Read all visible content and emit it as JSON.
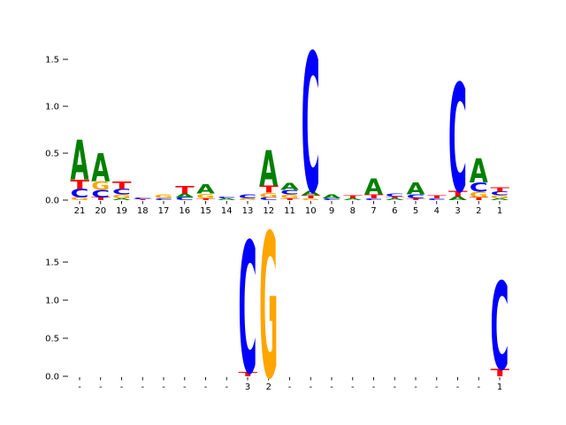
{
  "figure": {
    "background": "#ffffff",
    "axis_color": "#000000"
  },
  "chart_data": [
    {
      "type": "sequence_logo",
      "panel": "top",
      "title": "",
      "xlabel": "",
      "ylabel": "",
      "yticks": [
        0.0,
        0.5,
        1.0,
        1.5
      ],
      "ylim": [
        0,
        1.65
      ],
      "grid": false,
      "colors": {
        "A": "#008000",
        "C": "#0000ff",
        "G": "#ffa500",
        "T": "#ff0000"
      },
      "positions": [
        {
          "label": "21",
          "stack": [
            [
              "G",
              0.03
            ],
            [
              "C",
              0.09
            ],
            [
              "T",
              0.1
            ],
            [
              "A",
              0.42
            ]
          ]
        },
        {
          "label": "20",
          "stack": [
            [
              "T",
              0.03
            ],
            [
              "C",
              0.08
            ],
            [
              "G",
              0.09
            ],
            [
              "A",
              0.3
            ]
          ]
        },
        {
          "label": "19",
          "stack": [
            [
              "A",
              0.02
            ],
            [
              "G",
              0.04
            ],
            [
              "C",
              0.06
            ],
            [
              "T",
              0.08
            ]
          ]
        },
        {
          "label": "18",
          "stack": [
            [
              "T",
              0.01
            ],
            [
              "C",
              0.02
            ]
          ]
        },
        {
          "label": "17",
          "stack": [
            [
              "C",
              0.02
            ],
            [
              "G",
              0.04
            ]
          ]
        },
        {
          "label": "16",
          "stack": [
            [
              "C",
              0.03
            ],
            [
              "A",
              0.04
            ],
            [
              "T",
              0.08
            ]
          ]
        },
        {
          "label": "15",
          "stack": [
            [
              "T",
              0.02
            ],
            [
              "G",
              0.05
            ],
            [
              "A",
              0.1
            ]
          ]
        },
        {
          "label": "14",
          "stack": [
            [
              "A",
              0.02
            ],
            [
              "C",
              0.02
            ]
          ]
        },
        {
          "label": "13",
          "stack": [
            [
              "G",
              0.02
            ],
            [
              "C",
              0.04
            ]
          ]
        },
        {
          "label": "12",
          "stack": [
            [
              "C",
              0.03
            ],
            [
              "G",
              0.05
            ],
            [
              "T",
              0.07
            ],
            [
              "A",
              0.38
            ]
          ]
        },
        {
          "label": "11",
          "stack": [
            [
              "T",
              0.02
            ],
            [
              "G",
              0.04
            ],
            [
              "C",
              0.05
            ],
            [
              "A",
              0.07
            ]
          ]
        },
        {
          "label": "10",
          "stack": [
            [
              "G",
              0.02
            ],
            [
              "T",
              0.03
            ],
            [
              "A",
              0.05
            ],
            [
              "C",
              1.48
            ]
          ]
        },
        {
          "label": "9",
          "stack": [
            [
              "C",
              0.02
            ],
            [
              "A",
              0.04
            ]
          ]
        },
        {
          "label": "8",
          "stack": [
            [
              "A",
              0.02
            ],
            [
              "T",
              0.03
            ]
          ]
        },
        {
          "label": "7",
          "stack": [
            [
              "C",
              0.02
            ],
            [
              "T",
              0.04
            ],
            [
              "A",
              0.17
            ]
          ]
        },
        {
          "label": "6",
          "stack": [
            [
              "A",
              0.02
            ],
            [
              "T",
              0.02
            ],
            [
              "C",
              0.03
            ]
          ]
        },
        {
          "label": "5",
          "stack": [
            [
              "T",
              0.02
            ],
            [
              "C",
              0.04
            ],
            [
              "A",
              0.13
            ]
          ]
        },
        {
          "label": "4",
          "stack": [
            [
              "C",
              0.02
            ],
            [
              "T",
              0.03
            ]
          ]
        },
        {
          "label": "3",
          "stack": [
            [
              "A",
              0.04
            ],
            [
              "T",
              0.06
            ],
            [
              "C",
              1.15
            ]
          ]
        },
        {
          "label": "2",
          "stack": [
            [
              "T",
              0.03
            ],
            [
              "G",
              0.06
            ],
            [
              "C",
              0.1
            ],
            [
              "A",
              0.26
            ]
          ]
        },
        {
          "label": "1",
          "stack": [
            [
              "A",
              0.02
            ],
            [
              "G",
              0.03
            ],
            [
              "C",
              0.04
            ],
            [
              "T",
              0.05
            ]
          ]
        }
      ]
    },
    {
      "type": "sequence_logo",
      "panel": "bottom",
      "title": "",
      "xlabel": "",
      "ylabel": "",
      "yticks": [
        0.0,
        0.5,
        1.0,
        1.5
      ],
      "ylim": [
        0,
        1.95
      ],
      "grid": false,
      "colors": {
        "A": "#008000",
        "C": "#0000ff",
        "G": "#ffa500",
        "T": "#ff0000"
      },
      "positions": [
        {
          "label": "-",
          "stack": []
        },
        {
          "label": "-",
          "stack": []
        },
        {
          "label": "-",
          "stack": []
        },
        {
          "label": "-",
          "stack": []
        },
        {
          "label": "-",
          "stack": []
        },
        {
          "label": "-",
          "stack": []
        },
        {
          "label": "-",
          "stack": []
        },
        {
          "label": "-",
          "stack": []
        },
        {
          "label": "3",
          "stack": [
            [
              "T",
              0.06
            ],
            [
              "C",
              1.72
            ]
          ]
        },
        {
          "label": "2",
          "stack": [
            [
              "G",
              1.9
            ]
          ]
        },
        {
          "label": "-",
          "stack": []
        },
        {
          "label": "-",
          "stack": []
        },
        {
          "label": "-",
          "stack": []
        },
        {
          "label": "-",
          "stack": []
        },
        {
          "label": "-",
          "stack": []
        },
        {
          "label": "-",
          "stack": []
        },
        {
          "label": "-",
          "stack": []
        },
        {
          "label": "-",
          "stack": []
        },
        {
          "label": "-",
          "stack": []
        },
        {
          "label": "-",
          "stack": []
        },
        {
          "label": "1",
          "stack": [
            [
              "T",
              0.1
            ],
            [
              "C",
              1.15
            ]
          ]
        }
      ]
    }
  ]
}
